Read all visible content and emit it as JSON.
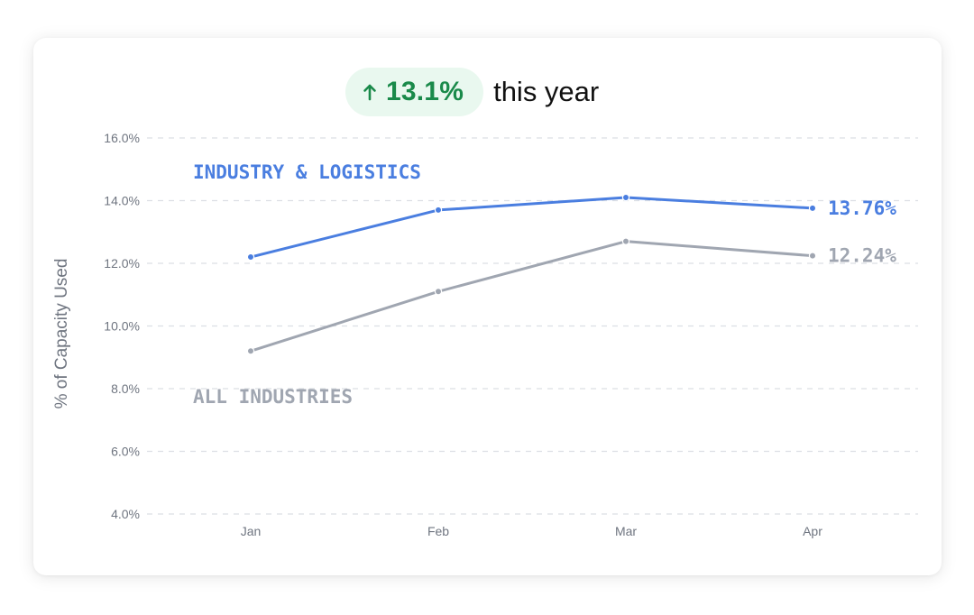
{
  "header": {
    "change_value": "13.1%",
    "change_suffix": "this year",
    "change_direction": "up",
    "arrow_icon": "arrow-up-icon",
    "accent_color": "#1a8a4a",
    "badge_background": "#e9f8ef"
  },
  "chart_data": {
    "type": "line",
    "categories": [
      "Jan",
      "Feb",
      "Mar",
      "Apr"
    ],
    "series": [
      {
        "name": "INDUSTRY & LOGISTICS",
        "values": [
          12.2,
          13.7,
          14.1,
          13.76
        ],
        "end_label": "13.76%",
        "color": "#4a7ee0"
      },
      {
        "name": "ALL INDUSTRIES",
        "values": [
          9.2,
          11.1,
          12.7,
          12.24
        ],
        "end_label": "12.24%",
        "color": "#a0a6b1"
      }
    ],
    "title": "",
    "xlabel": "",
    "ylabel": "% of Capacity Used",
    "ylim": [
      4.0,
      16.0
    ],
    "yticks": [
      "16.0%",
      "14.0%",
      "12.0%",
      "10.0%",
      "8.0%",
      "6.0%",
      "4.0%"
    ],
    "grid": true,
    "grid_style": "dashed"
  }
}
